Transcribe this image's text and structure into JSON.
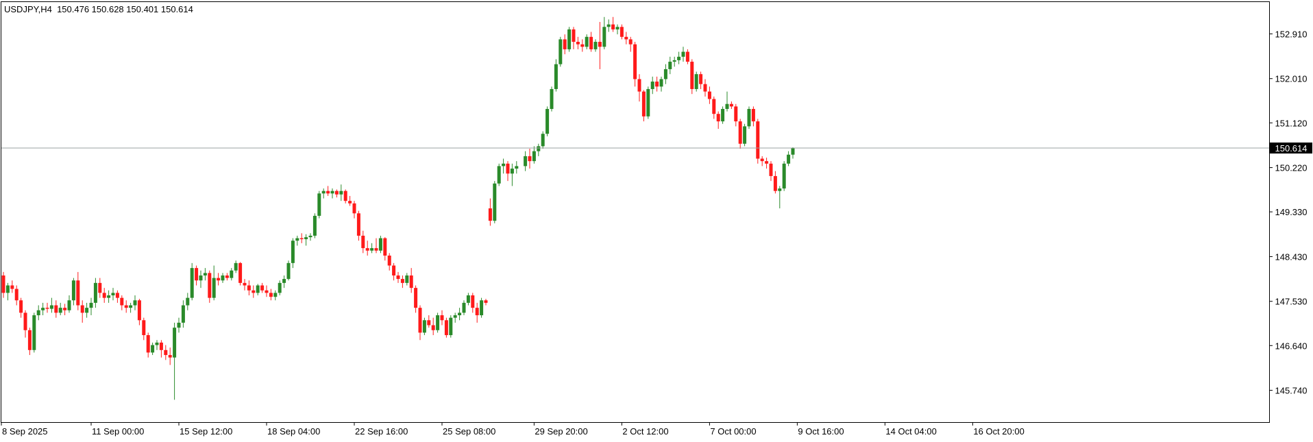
{
  "chart_data": {
    "type": "candlestick",
    "title": "USDJPY,H4  150.476 150.628 150.401 150.614",
    "symbol": "USDJPY",
    "timeframe": "H4",
    "ylim": [
      145.1,
      153.55
    ],
    "price_ticks": [
      "152.910",
      "152.010",
      "151.120",
      "150.220",
      "149.330",
      "148.430",
      "147.530",
      "146.640",
      "145.740"
    ],
    "time_ticks": [
      "8 Sep 2025",
      "11 Sep 00:00",
      "15 Sep 12:00",
      "18 Sep 04:00",
      "22 Sep 16:00",
      "25 Sep 08:00",
      "29 Sep 20:00",
      "2 Oct 12:00",
      "7 Oct 00:00",
      "9 Oct 16:00",
      "14 Oct 04:00",
      "16 Oct 20:00"
    ],
    "current_price": 150.614,
    "current_price_label": "150.614",
    "colors": {
      "up": "#2a8a2a",
      "down": "#ff1a1a",
      "current_line": "#9aa0a0",
      "grid": "none",
      "text": "#000000",
      "axis": "#000000"
    },
    "grid": false,
    "ohlc": [
      [
        148.05,
        148.12,
        147.6,
        147.7
      ],
      [
        147.7,
        147.9,
        147.55,
        147.85
      ],
      [
        147.85,
        147.95,
        147.7,
        147.78
      ],
      [
        147.78,
        147.85,
        147.45,
        147.55
      ],
      [
        147.55,
        147.6,
        147.2,
        147.3
      ],
      [
        147.3,
        147.35,
        146.8,
        146.95
      ],
      [
        146.95,
        147.0,
        146.45,
        146.55
      ],
      [
        146.55,
        147.3,
        146.5,
        147.25
      ],
      [
        147.25,
        147.45,
        147.15,
        147.35
      ],
      [
        147.35,
        147.5,
        147.25,
        147.4
      ],
      [
        147.4,
        147.5,
        147.3,
        147.38
      ],
      [
        147.38,
        147.6,
        147.3,
        147.45
      ],
      [
        147.45,
        147.55,
        147.2,
        147.3
      ],
      [
        147.3,
        147.5,
        147.25,
        147.4
      ],
      [
        147.4,
        147.48,
        147.25,
        147.35
      ],
      [
        147.35,
        147.65,
        147.3,
        147.55
      ],
      [
        147.55,
        148.0,
        147.45,
        147.95
      ],
      [
        147.95,
        148.12,
        147.35,
        147.45
      ],
      [
        147.45,
        147.55,
        147.1,
        147.3
      ],
      [
        147.3,
        147.5,
        147.2,
        147.4
      ],
      [
        147.4,
        147.6,
        147.25,
        147.5
      ],
      [
        147.5,
        148.0,
        147.4,
        147.9
      ],
      [
        147.9,
        148.0,
        147.6,
        147.7
      ],
      [
        147.7,
        147.8,
        147.5,
        147.6
      ],
      [
        147.6,
        147.75,
        147.5,
        147.65
      ],
      [
        147.65,
        147.8,
        147.55,
        147.7
      ],
      [
        147.7,
        147.75,
        147.5,
        147.6
      ],
      [
        147.6,
        147.65,
        147.35,
        147.45
      ],
      [
        147.45,
        147.55,
        147.3,
        147.4
      ],
      [
        147.4,
        147.5,
        147.3,
        147.45
      ],
      [
        147.45,
        147.65,
        147.35,
        147.55
      ],
      [
        147.55,
        147.58,
        147.05,
        147.15
      ],
      [
        147.15,
        147.2,
        146.75,
        146.85
      ],
      [
        146.85,
        146.9,
        146.4,
        146.5
      ],
      [
        146.5,
        146.7,
        146.45,
        146.65
      ],
      [
        146.65,
        146.75,
        146.55,
        146.7
      ],
      [
        146.7,
        146.75,
        146.4,
        146.55
      ],
      [
        146.55,
        146.65,
        146.35,
        146.45
      ],
      [
        146.45,
        146.6,
        146.25,
        146.4
      ],
      [
        146.4,
        147.1,
        145.55,
        147.0
      ],
      [
        147.0,
        147.2,
        146.9,
        147.1
      ],
      [
        147.1,
        147.55,
        147.0,
        147.45
      ],
      [
        147.45,
        147.7,
        147.35,
        147.6
      ],
      [
        147.6,
        148.3,
        147.55,
        148.2
      ],
      [
        148.2,
        148.25,
        147.85,
        147.95
      ],
      [
        147.95,
        148.15,
        147.8,
        148.05
      ],
      [
        148.05,
        148.2,
        147.95,
        148.1
      ],
      [
        148.1,
        148.15,
        147.5,
        147.6
      ],
      [
        147.6,
        148.25,
        147.55,
        148.0
      ],
      [
        148.0,
        148.1,
        147.85,
        147.95
      ],
      [
        147.95,
        148.1,
        147.9,
        148.05
      ],
      [
        148.05,
        148.1,
        147.95,
        148.0
      ],
      [
        148.0,
        148.2,
        147.95,
        148.15
      ],
      [
        148.15,
        148.35,
        148.1,
        148.3
      ],
      [
        148.3,
        148.32,
        147.85,
        147.9
      ],
      [
        147.9,
        147.98,
        147.75,
        147.85
      ],
      [
        147.85,
        147.95,
        147.65,
        147.75
      ],
      [
        147.75,
        147.85,
        147.6,
        147.7
      ],
      [
        147.7,
        147.88,
        147.65,
        147.85
      ],
      [
        147.85,
        147.9,
        147.7,
        147.75
      ],
      [
        147.75,
        147.85,
        147.62,
        147.7
      ],
      [
        147.7,
        147.78,
        147.55,
        147.62
      ],
      [
        147.62,
        147.75,
        147.55,
        147.7
      ],
      [
        147.7,
        147.95,
        147.65,
        147.9
      ],
      [
        147.9,
        148.05,
        147.8,
        147.98
      ],
      [
        147.98,
        148.35,
        147.95,
        148.3
      ],
      [
        148.3,
        148.8,
        148.2,
        148.75
      ],
      [
        148.75,
        148.85,
        148.65,
        148.8
      ],
      [
        148.8,
        148.9,
        148.7,
        148.78
      ],
      [
        148.78,
        148.88,
        148.65,
        148.82
      ],
      [
        148.82,
        148.9,
        148.75,
        148.85
      ],
      [
        148.85,
        149.3,
        148.8,
        149.25
      ],
      [
        149.25,
        149.75,
        149.2,
        149.7
      ],
      [
        149.7,
        149.8,
        149.6,
        149.75
      ],
      [
        149.75,
        149.85,
        149.65,
        149.7
      ],
      [
        149.7,
        149.8,
        149.6,
        149.75
      ],
      [
        149.75,
        149.78,
        149.62,
        149.68
      ],
      [
        149.68,
        149.88,
        149.55,
        149.75
      ],
      [
        149.75,
        149.78,
        149.5,
        149.55
      ],
      [
        149.55,
        149.65,
        149.45,
        149.5
      ],
      [
        149.5,
        149.55,
        149.2,
        149.3
      ],
      [
        149.3,
        149.35,
        148.75,
        148.85
      ],
      [
        148.85,
        148.95,
        148.5,
        148.6
      ],
      [
        148.6,
        148.75,
        148.45,
        148.55
      ],
      [
        148.55,
        148.7,
        148.5,
        148.6
      ],
      [
        148.6,
        148.8,
        148.5,
        148.55
      ],
      [
        148.55,
        148.85,
        148.5,
        148.8
      ],
      [
        148.8,
        148.82,
        148.35,
        148.45
      ],
      [
        148.45,
        148.5,
        148.15,
        148.25
      ],
      [
        148.25,
        148.3,
        147.95,
        148.05
      ],
      [
        148.05,
        148.12,
        147.9,
        147.98
      ],
      [
        147.98,
        148.05,
        147.8,
        147.9
      ],
      [
        147.9,
        148.1,
        147.85,
        148.05
      ],
      [
        148.05,
        148.2,
        147.7,
        147.8
      ],
      [
        147.8,
        147.85,
        147.3,
        147.4
      ],
      [
        147.4,
        147.45,
        146.75,
        146.9
      ],
      [
        146.9,
        147.2,
        146.85,
        147.15
      ],
      [
        147.15,
        147.25,
        147.0,
        147.05
      ],
      [
        147.05,
        147.2,
        146.85,
        146.95
      ],
      [
        146.95,
        147.3,
        146.9,
        147.25
      ],
      [
        147.25,
        147.35,
        147.05,
        147.15
      ],
      [
        147.15,
        147.2,
        146.8,
        146.85
      ],
      [
        146.85,
        147.25,
        146.8,
        147.2
      ],
      [
        147.2,
        147.3,
        147.1,
        147.25
      ],
      [
        147.25,
        147.4,
        147.15,
        147.3
      ],
      [
        147.3,
        147.55,
        147.25,
        147.5
      ],
      [
        147.5,
        147.7,
        147.45,
        147.65
      ],
      [
        147.65,
        147.7,
        147.3,
        147.4
      ],
      [
        147.4,
        147.5,
        147.1,
        147.25
      ],
      [
        147.25,
        147.6,
        147.2,
        147.55
      ],
      [
        147.55,
        147.58,
        147.45,
        147.5
      ],
      [
        149.4,
        149.6,
        149.05,
        149.15
      ],
      [
        149.15,
        149.95,
        149.1,
        149.9
      ],
      [
        149.9,
        150.3,
        149.85,
        150.25
      ],
      [
        150.25,
        150.4,
        150.1,
        150.3
      ],
      [
        150.3,
        150.35,
        149.95,
        150.1
      ],
      [
        150.1,
        150.3,
        149.85,
        150.2
      ],
      [
        150.2,
        150.35,
        150.1,
        150.25
      ],
      [
        150.25,
        150.55,
        150.15,
        150.45
      ],
      [
        150.45,
        150.6,
        150.2,
        150.35
      ],
      [
        150.35,
        150.65,
        150.3,
        150.55
      ],
      [
        150.55,
        150.7,
        150.45,
        150.65
      ],
      [
        150.65,
        150.95,
        150.6,
        150.9
      ],
      [
        150.9,
        151.45,
        150.85,
        151.4
      ],
      [
        151.4,
        151.85,
        151.35,
        151.8
      ],
      [
        151.8,
        152.4,
        151.75,
        152.3
      ],
      [
        152.3,
        152.85,
        152.25,
        152.8
      ],
      [
        152.8,
        152.9,
        152.5,
        152.6
      ],
      [
        152.6,
        153.05,
        152.55,
        153.0
      ],
      [
        153.0,
        153.05,
        152.6,
        152.75
      ],
      [
        152.75,
        152.85,
        152.6,
        152.7
      ],
      [
        152.7,
        152.8,
        152.55,
        152.65
      ],
      [
        152.65,
        152.9,
        152.6,
        152.85
      ],
      [
        152.85,
        152.95,
        152.55,
        152.6
      ],
      [
        152.6,
        152.8,
        152.55,
        152.75
      ],
      [
        152.75,
        153.15,
        152.2,
        152.65
      ],
      [
        152.65,
        153.25,
        152.6,
        153.05
      ],
      [
        153.05,
        153.2,
        152.95,
        153.1
      ],
      [
        153.1,
        153.25,
        152.95,
        153.0
      ],
      [
        153.0,
        153.1,
        152.9,
        153.05
      ],
      [
        153.05,
        153.1,
        152.8,
        152.85
      ],
      [
        152.85,
        152.95,
        152.7,
        152.8
      ],
      [
        152.8,
        152.85,
        152.55,
        152.7
      ],
      [
        152.7,
        152.75,
        151.85,
        152.0
      ],
      [
        152.0,
        152.1,
        151.55,
        151.75
      ],
      [
        151.75,
        151.78,
        151.15,
        151.25
      ],
      [
        151.25,
        151.85,
        151.2,
        151.8
      ],
      [
        151.8,
        152.05,
        151.7,
        151.95
      ],
      [
        151.95,
        152.05,
        151.75,
        151.85
      ],
      [
        151.85,
        152.05,
        151.75,
        152.0
      ],
      [
        152.0,
        152.3,
        151.9,
        152.2
      ],
      [
        152.2,
        152.45,
        152.1,
        152.35
      ],
      [
        152.35,
        152.45,
        152.25,
        152.38
      ],
      [
        152.38,
        152.55,
        152.3,
        152.45
      ],
      [
        152.45,
        152.65,
        152.35,
        152.55
      ],
      [
        152.55,
        152.6,
        152.3,
        152.35
      ],
      [
        152.35,
        152.4,
        151.7,
        151.8
      ],
      [
        151.8,
        152.15,
        151.75,
        152.1
      ],
      [
        152.1,
        152.15,
        151.8,
        151.9
      ],
      [
        151.9,
        152.0,
        151.65,
        151.75
      ],
      [
        151.75,
        151.85,
        151.5,
        151.6
      ],
      [
        151.6,
        151.65,
        151.2,
        151.3
      ],
      [
        151.3,
        151.35,
        151.0,
        151.15
      ],
      [
        151.15,
        151.45,
        151.1,
        151.4
      ],
      [
        151.4,
        151.75,
        151.35,
        151.5
      ],
      [
        151.5,
        151.55,
        151.4,
        151.45
      ],
      [
        151.45,
        151.5,
        151.05,
        151.15
      ],
      [
        151.15,
        151.2,
        150.6,
        150.7
      ],
      [
        150.7,
        151.1,
        150.65,
        151.05
      ],
      [
        151.05,
        151.45,
        151.0,
        151.4
      ],
      [
        151.4,
        151.45,
        151.05,
        151.15
      ],
      [
        151.15,
        151.2,
        150.3,
        150.4
      ],
      [
        150.4,
        150.45,
        150.25,
        150.35
      ],
      [
        150.35,
        150.42,
        150.2,
        150.3
      ],
      [
        150.3,
        150.35,
        149.95,
        150.05
      ],
      [
        150.05,
        150.15,
        149.7,
        149.75
      ],
      [
        149.75,
        149.85,
        149.4,
        149.8
      ],
      [
        149.8,
        150.35,
        149.75,
        150.3
      ],
      [
        150.3,
        150.55,
        150.25,
        150.48
      ],
      [
        150.48,
        150.63,
        150.4,
        150.61
      ]
    ]
  }
}
